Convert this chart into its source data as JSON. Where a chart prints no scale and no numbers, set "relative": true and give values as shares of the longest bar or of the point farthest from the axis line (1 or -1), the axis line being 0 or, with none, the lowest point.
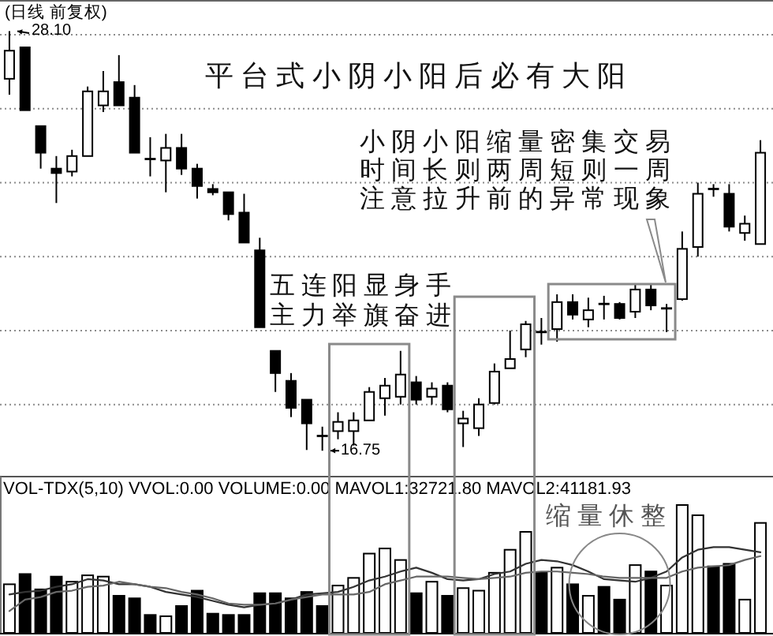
{
  "chart_data": [
    {
      "type": "candlestick",
      "title": "(日线 前复权)",
      "categories": [
        null,
        null,
        null,
        null,
        null,
        null,
        null,
        null,
        null,
        null,
        null,
        null,
        null,
        null,
        null,
        null,
        null,
        null,
        null,
        null,
        null,
        null,
        null,
        null,
        null,
        null,
        null,
        null,
        null,
        null,
        null,
        null,
        null,
        null,
        null,
        null,
        null,
        null,
        null,
        null,
        null,
        null,
        null,
        null,
        null,
        null,
        null,
        null,
        null
      ],
      "ohlc": [
        [
          26.81,
          28.1,
          26.38,
          27.57
        ],
        [
          27.66,
          27.66,
          25.96,
          25.96
        ],
        [
          25.53,
          25.53,
          24.38,
          24.81
        ],
        [
          24.38,
          24.72,
          23.45,
          24.26
        ],
        [
          24.3,
          24.89,
          24.17,
          24.72
        ],
        [
          24.72,
          26.6,
          24.72,
          26.47
        ],
        [
          26.09,
          27.02,
          25.91,
          26.47
        ],
        [
          26.72,
          27.45,
          26.09,
          26.09
        ],
        [
          26.3,
          26.64,
          24.81,
          24.81
        ],
        [
          24.64,
          25.23,
          24.17,
          24.64
        ],
        [
          24.6,
          25.32,
          23.74,
          24.94
        ],
        [
          24.94,
          25.32,
          24.21,
          24.38
        ],
        [
          24.38,
          24.51,
          23.57,
          23.91
        ],
        [
          23.83,
          23.96,
          23.66,
          23.74
        ],
        [
          23.74,
          23.74,
          22.98,
          23.15
        ],
        [
          23.19,
          23.7,
          22.38,
          22.38
        ],
        [
          22.17,
          22.51,
          20.09,
          20.09
        ],
        [
          19.45,
          19.45,
          18.34,
          18.85
        ],
        [
          18.64,
          18.85,
          17.66,
          17.91
        ],
        [
          18.13,
          18.13,
          16.77,
          17.49
        ],
        [
          17.15,
          17.4,
          16.75,
          17.15
        ],
        [
          17.28,
          17.79,
          17.06,
          17.53
        ],
        [
          17.28,
          17.79,
          16.89,
          17.57
        ],
        [
          17.57,
          18.47,
          17.57,
          18.34
        ],
        [
          18.17,
          18.72,
          17.7,
          18.51
        ],
        [
          18.21,
          19.45,
          18.0,
          18.81
        ],
        [
          18.6,
          18.77,
          18.0,
          18.13
        ],
        [
          18.21,
          18.6,
          18.0,
          18.43
        ],
        [
          18.51,
          18.6,
          17.79,
          17.87
        ],
        [
          17.49,
          17.83,
          16.85,
          17.62
        ],
        [
          17.36,
          18.17,
          17.15,
          18.0
        ],
        [
          18.04,
          19.11,
          18.0,
          18.89
        ],
        [
          18.98,
          20.0,
          18.98,
          19.23
        ],
        [
          19.49,
          20.26,
          19.28,
          20.17
        ],
        [
          19.96,
          20.34,
          19.62,
          19.96
        ],
        [
          20.04,
          20.98,
          19.7,
          20.77
        ],
        [
          20.77,
          20.98,
          20.3,
          20.43
        ],
        [
          20.3,
          20.89,
          20.09,
          20.55
        ],
        [
          20.72,
          20.94,
          20.3,
          20.72
        ],
        [
          20.72,
          20.77,
          20.3,
          20.34
        ],
        [
          20.51,
          21.28,
          20.34,
          21.11
        ],
        [
          21.11,
          21.28,
          20.55,
          20.68
        ],
        [
          20.6,
          20.72,
          19.96,
          20.6
        ],
        [
          20.85,
          22.68,
          20.81,
          22.21
        ],
        [
          22.26,
          24.0,
          22.0,
          23.7
        ],
        [
          23.83,
          23.96,
          23.62,
          23.83
        ],
        [
          23.7,
          23.96,
          22.68,
          22.81
        ],
        [
          22.64,
          23.11,
          22.43,
          22.89
        ],
        [
          22.34,
          25.15,
          22.34,
          24.81
        ]
      ],
      "yticks": [
        {
          "value": 18,
          "label": null
        },
        {
          "value": 20,
          "label": null
        },
        {
          "value": 22,
          "label": null
        },
        {
          "value": 24,
          "label": null
        },
        {
          "value": 26,
          "label": null
        },
        {
          "value": 28,
          "label": null
        }
      ],
      "grid": "y",
      "annotations": [
        "平台式小阴小阳后必有大阳",
        "小阴小阳缩量密集交易",
        "时间长则两周短则一周",
        "注意拉升前的异常现象",
        "五连阳显身手",
        "主力举旗奋进",
        "28.10",
        "16.75"
      ]
    },
    {
      "type": "bar",
      "title": "VOL-TDX(5,10) VVOL:0.00 VOLUME:0.00 MAVOL1:32721.80 MAVOL2:41181.93",
      "relative": true,
      "categories": [
        null,
        null,
        null,
        null,
        null,
        null,
        null,
        null,
        null,
        null,
        null,
        null,
        null,
        null,
        null,
        null,
        null,
        null,
        null,
        null,
        null,
        null,
        null,
        null,
        null,
        null,
        null,
        null,
        null,
        null,
        null,
        null,
        null,
        null,
        null,
        null,
        null,
        null,
        null,
        null,
        null,
        null,
        null,
        null,
        null,
        null,
        null,
        null,
        null
      ],
      "series": [
        {
          "values": [
            0.38,
            0.46,
            0.34,
            0.44,
            0.4,
            0.45,
            0.44,
            0.29,
            0.27,
            0.14,
            0.13,
            0.21,
            0.33,
            0.15,
            0.14,
            0.14,
            0.31,
            0.31,
            0.27,
            0.32,
            0.21,
            0.37,
            0.43,
            0.62,
            0.66,
            0.57,
            0.31,
            0.4,
            0.29,
            0.35,
            0.33,
            0.47,
            0.65,
            0.79,
            0.47,
            0.51,
            0.38,
            0.29,
            0.36,
            0.26,
            0.53,
            0.48,
            0.37,
            1,
            0.92,
            0.52,
            0.54,
            0.26,
            0.86
          ],
          "colors": [
            "#ffffff",
            "#000000",
            "#000000",
            "#000000",
            "#ffffff",
            "#ffffff",
            "#ffffff",
            "#000000",
            "#000000",
            "#000000",
            "#ffffff",
            "#000000",
            "#000000",
            "#000000",
            "#000000",
            "#000000",
            "#000000",
            "#000000",
            "#000000",
            "#000000",
            "#000000",
            "#ffffff",
            "#ffffff",
            "#ffffff",
            "#ffffff",
            "#ffffff",
            "#000000",
            "#ffffff",
            "#000000",
            "#ffffff",
            "#ffffff",
            "#ffffff",
            "#ffffff",
            "#ffffff",
            "#000000",
            "#ffffff",
            "#000000",
            "#ffffff",
            "#000000",
            "#000000",
            "#ffffff",
            "#000000",
            "#ffffff",
            "#ffffff",
            "#ffffff",
            "#000000",
            "#000000",
            "#ffffff",
            "#ffffff"
          ]
        },
        {
          "type": "line",
          "color": "#333333",
          "values": [
            0.3,
            0.32,
            0.33,
            0.36,
            0.38,
            0.42,
            0.41,
            0.38,
            0.38,
            0.36,
            0.32,
            0.3,
            0.28,
            0.25,
            0.22,
            0.2,
            0.22,
            0.23,
            0.26,
            0.3,
            0.31,
            0.32,
            0.36,
            0.41,
            0.44,
            0.48,
            0.51,
            0.47,
            0.42,
            0.41,
            0.42,
            0.46,
            0.48,
            0.54,
            0.57,
            0.56,
            0.53,
            0.48,
            0.42,
            0.41,
            0.4,
            0.43,
            0.48,
            0.59,
            0.65,
            0.67,
            0.67,
            0.65,
            0.63
          ]
        },
        {
          "type": "line",
          "color": "#666666",
          "values": [
            0.17,
            0.26,
            0.28,
            0.32,
            0.33,
            0.36,
            0.37,
            0.4,
            0.38,
            0.36,
            0.35,
            0.32,
            0.3,
            0.27,
            0.23,
            0.22,
            0.22,
            0.23,
            0.26,
            0.28,
            0.3,
            0.3,
            0.3,
            0.32,
            0.38,
            0.41,
            0.44,
            0.44,
            0.44,
            0.43,
            0.42,
            0.43,
            0.44,
            0.47,
            0.48,
            0.48,
            0.47,
            0.46,
            0.44,
            0.43,
            0.43,
            0.43,
            0.43,
            0.48,
            0.51,
            0.52,
            0.53,
            0.57,
            0.6
          ]
        }
      ],
      "annotations": [
        "缩量休整"
      ]
    }
  ]
}
